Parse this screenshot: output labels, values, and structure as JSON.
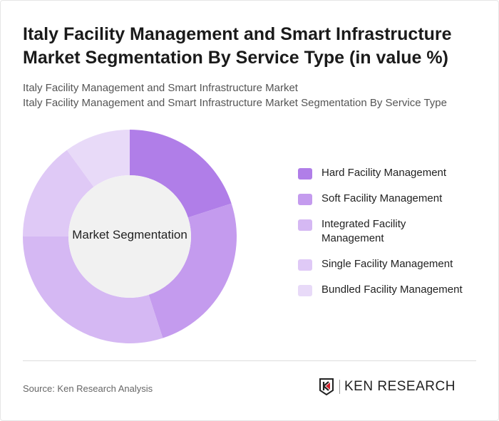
{
  "title": "Italy Facility Management and Smart Infrastructure Market Segmentation By Service Type (in value %)",
  "subtitle_lines": [
    "Italy Facility Management and Smart Infrastructure Market",
    "Italy Facility Management and Smart Infrastructure Market Segmentation By Service Type"
  ],
  "chart_data": {
    "type": "pie",
    "donut": true,
    "center_label": "Market Segmentation",
    "categories": [
      "Hard Facility Management",
      "Soft Facility Management",
      "Integrated Facility Management",
      "Single Facility Management",
      "Bundled Facility Management"
    ],
    "values": [
      20,
      25,
      30,
      15,
      10
    ],
    "colors": [
      "#b07ee8",
      "#c49bee",
      "#d5b8f3",
      "#dfc9f6",
      "#e8daf8"
    ],
    "legend_position": "right"
  },
  "source": "Source: Ken Research Analysis",
  "logo_text": "KEN RESEARCH"
}
